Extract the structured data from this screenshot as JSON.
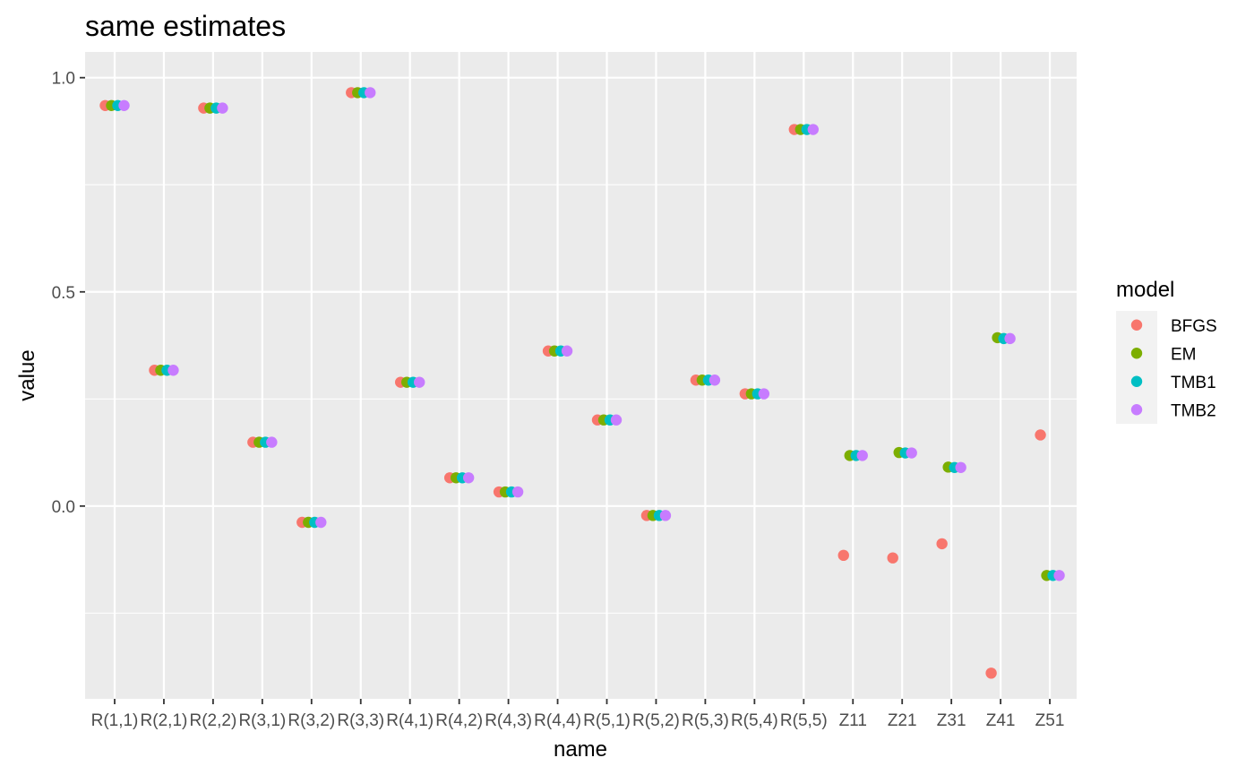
{
  "chart_data": {
    "type": "scatter",
    "title": "same estimates",
    "xlabel": "name",
    "ylabel": "value",
    "ylim": [
      -0.45,
      1.06
    ],
    "yticks": [
      0.0,
      0.5,
      1.0
    ],
    "ytick_labels": [
      "0.0",
      "0.5",
      "1.0"
    ],
    "categories": [
      "R(1,1)",
      "R(2,1)",
      "R(2,2)",
      "R(3,1)",
      "R(3,2)",
      "R(3,3)",
      "R(4,1)",
      "R(4,2)",
      "R(4,3)",
      "R(4,4)",
      "R(5,1)",
      "R(5,2)",
      "R(5,3)",
      "R(5,4)",
      "R(5,5)",
      "Z11",
      "Z21",
      "Z31",
      "Z41",
      "Z51"
    ],
    "grid": true,
    "legend": {
      "title": "model",
      "position": "right"
    },
    "series": [
      {
        "name": "BFGS",
        "color": "#F8766D",
        "values": [
          0.935,
          0.317,
          0.929,
          0.149,
          -0.038,
          0.965,
          0.289,
          0.066,
          0.033,
          0.362,
          0.201,
          -0.022,
          0.294,
          0.262,
          0.879,
          -0.115,
          -0.121,
          -0.088,
          -0.39,
          0.166
        ]
      },
      {
        "name": "EM",
        "color": "#7CAE00",
        "values": [
          0.935,
          0.317,
          0.929,
          0.149,
          -0.038,
          0.965,
          0.289,
          0.066,
          0.033,
          0.362,
          0.201,
          -0.022,
          0.294,
          0.262,
          0.879,
          0.118,
          0.125,
          0.091,
          0.393,
          -0.162
        ]
      },
      {
        "name": "TMB1",
        "color": "#00BFC4",
        "values": [
          0.935,
          0.317,
          0.929,
          0.149,
          -0.038,
          0.965,
          0.289,
          0.066,
          0.033,
          0.362,
          0.201,
          -0.022,
          0.294,
          0.262,
          0.879,
          0.118,
          0.124,
          0.09,
          0.391,
          -0.162
        ]
      },
      {
        "name": "TMB2",
        "color": "#C77CFF",
        "values": [
          0.935,
          0.317,
          0.929,
          0.149,
          -0.038,
          0.965,
          0.289,
          0.066,
          0.033,
          0.362,
          0.201,
          -0.022,
          0.294,
          0.262,
          0.879,
          0.118,
          0.124,
          0.09,
          0.391,
          -0.162
        ]
      }
    ]
  }
}
